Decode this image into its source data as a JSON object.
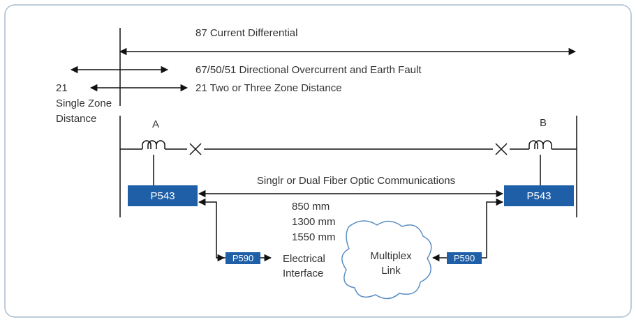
{
  "zones": {
    "differential": "87 Current Differential",
    "overcurrent": "67/50/51 Directional Overcurrent and Earth Fault",
    "distance_multi": "21 Two or Three Zone Distance",
    "distance_single": [
      "21",
      "Single Zone",
      "Distance"
    ]
  },
  "buses": {
    "a": "A",
    "b": "B"
  },
  "relays": {
    "left": "P543",
    "right": "P543"
  },
  "communication": {
    "label": "Singlr or Dual Fiber Optic Communications",
    "wavelengths": [
      "850 mm",
      "1300 mm",
      "1550 mm"
    ]
  },
  "interfaces": {
    "left": "P590",
    "right": "P590",
    "electrical": [
      "Electrical",
      "Interface"
    ]
  },
  "multiplex": [
    "Multiplex",
    "Link"
  ]
}
